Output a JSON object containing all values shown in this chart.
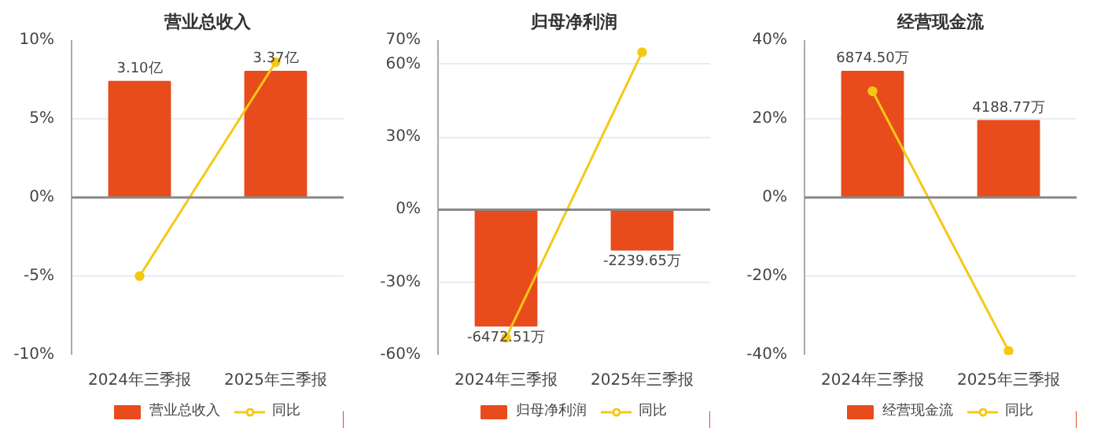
{
  "chart_data": [
    {
      "type": "bar",
      "title": "营业总收入",
      "categories": [
        "2024年三季报",
        "2025年三季报"
      ],
      "ylim": [
        -10,
        10
      ],
      "yticks": [
        {
          "value": -10,
          "label": "-10%"
        },
        {
          "value": -5,
          "label": "-5%"
        },
        {
          "value": 0,
          "label": "0%"
        },
        {
          "value": 5,
          "label": "5%"
        },
        {
          "value": 10,
          "label": "10%"
        }
      ],
      "grid": "y",
      "legend": "bottom",
      "series": [
        {
          "name": "营业总收入",
          "axis": "y2",
          "color": "#e84c1c",
          "values": [
            3.1,
            3.37
          ],
          "value_labels": [
            "3.10亿",
            "3.37亿"
          ]
        },
        {
          "name": "同比",
          "type": "line",
          "color": "#f5c816",
          "values": [
            -5,
            8.6
          ],
          "marker": "circle"
        }
      ]
    },
    {
      "type": "bar",
      "title": "归母净利润",
      "categories": [
        "2024年三季报",
        "2025年三季报"
      ],
      "ylim": [
        -60,
        70
      ],
      "yticks": [
        {
          "value": -60,
          "label": "-60%"
        },
        {
          "value": -30,
          "label": "-30%"
        },
        {
          "value": 0,
          "label": "0%"
        },
        {
          "value": 30,
          "label": "30%"
        },
        {
          "value": 60,
          "label": "60%"
        },
        {
          "value": 70,
          "label": "70%"
        }
      ],
      "grid": "y",
      "legend": "bottom",
      "series": [
        {
          "name": "归母净利润",
          "axis": "y2",
          "color": "#e84c1c",
          "values": [
            -6472.51,
            -2239.65
          ],
          "value_labels": [
            "-6472.51万",
            "-2239.65万"
          ]
        },
        {
          "name": "同比",
          "type": "line",
          "color": "#f5c816",
          "values": [
            -53,
            65
          ],
          "marker": "circle"
        }
      ]
    },
    {
      "type": "bar",
      "title": "经营现金流",
      "categories": [
        "2024年三季报",
        "2025年三季报"
      ],
      "ylim": [
        -40,
        40
      ],
      "yticks": [
        {
          "value": -40,
          "label": "-40%"
        },
        {
          "value": -20,
          "label": "-20%"
        },
        {
          "value": 0,
          "label": "0%"
        },
        {
          "value": 20,
          "label": "20%"
        },
        {
          "value": 40,
          "label": "40%"
        }
      ],
      "grid": "y",
      "legend": "bottom",
      "series": [
        {
          "name": "经营现金流",
          "axis": "y2",
          "color": "#e84c1c",
          "values": [
            6874.5,
            4188.77
          ],
          "value_labels": [
            "6874.50万",
            "4188.77万"
          ]
        },
        {
          "name": "同比",
          "type": "line",
          "color": "#f5c816",
          "values": [
            27,
            -39
          ],
          "marker": "circle"
        }
      ]
    }
  ]
}
